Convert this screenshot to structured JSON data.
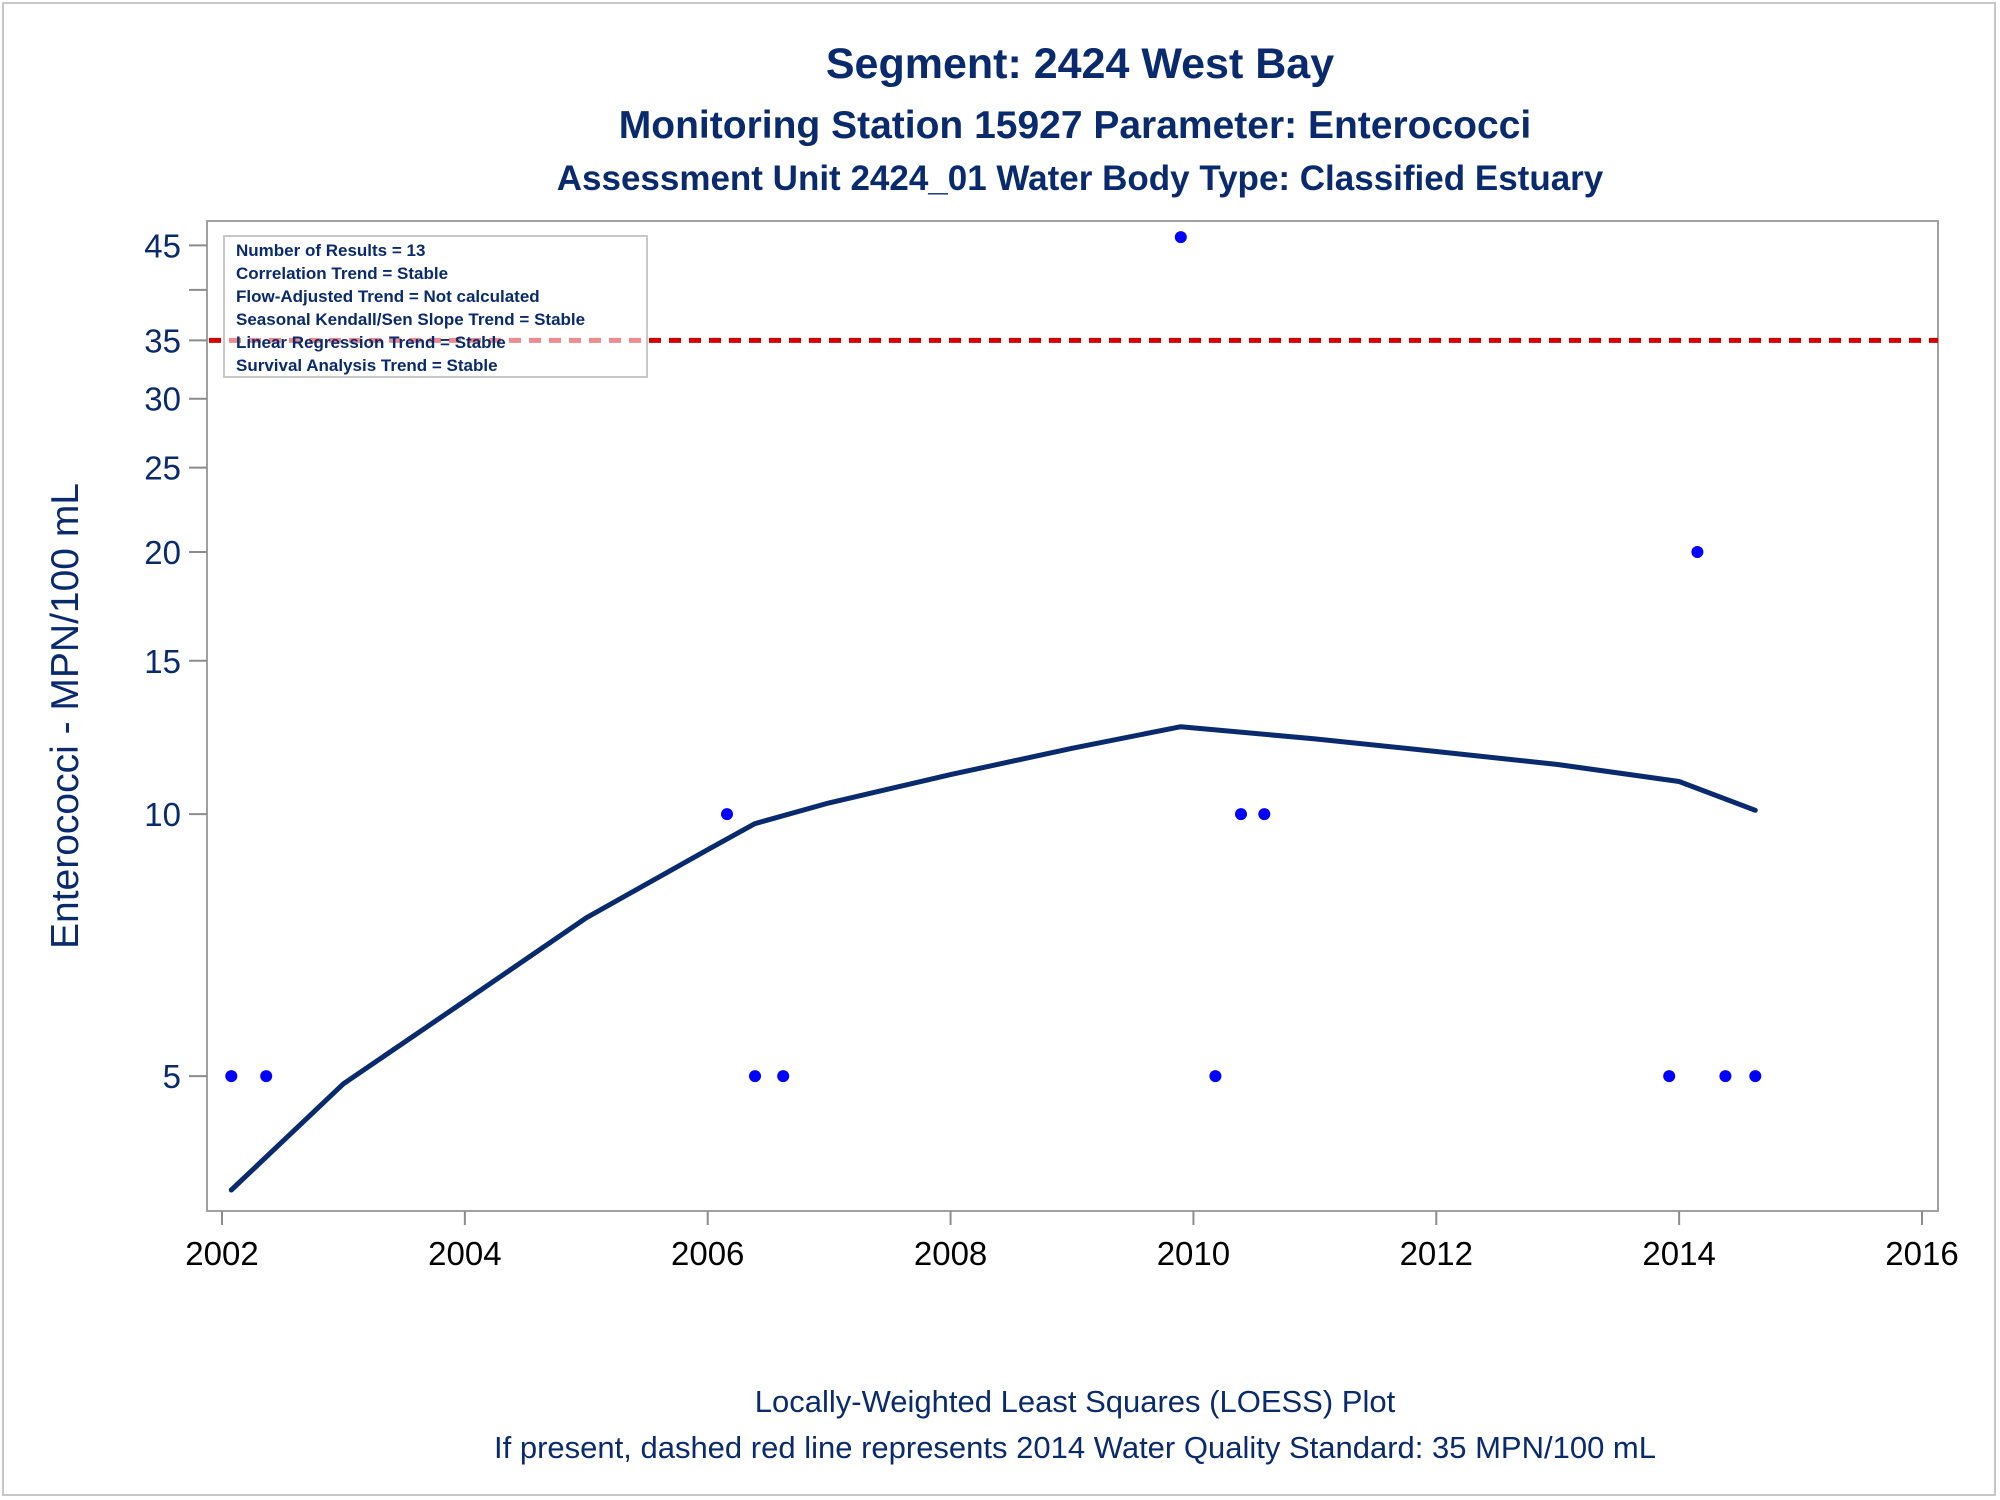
{
  "titles": {
    "line1": "Segment: 2424  West Bay",
    "line2": "Monitoring Station 15927 Parameter: Enterococci",
    "line3": "Assessment Unit 2424_01   Water Body Type: Classified Estuary"
  },
  "footer": {
    "line1": "Locally-Weighted Least Squares (LOESS) Plot",
    "line2": "If present, dashed red line represents 2014 Water Quality Standard: 35 MPN/100 mL"
  },
  "info_box": {
    "lines": [
      "Number of Results = 13",
      "Correlation Trend = Stable",
      "Flow-Adjusted Trend = Not calculated",
      "Seasonal Kendall/Sen Slope Trend = Stable",
      "Linear Regression Trend = Stable",
      "Survival Analysis Trend = Stable"
    ]
  },
  "colors": {
    "points": "#0000ff",
    "loess": "#0a2a6e",
    "standard": "#d40000",
    "text": "#0a2a6e"
  },
  "chart_data": {
    "type": "scatter",
    "title": "Segment: 2424  West Bay",
    "xlabel": "",
    "ylabel": "Enterococci - MPN/100 mL",
    "y_scale": "log",
    "xlim": [
      2002,
      2016
    ],
    "ylim": [
      3.5,
      48
    ],
    "x_ticks": [
      2002,
      2004,
      2006,
      2008,
      2010,
      2012,
      2014,
      2016
    ],
    "y_ticks": [
      5,
      10,
      15,
      20,
      25,
      30,
      35,
      45
    ],
    "y_minor_ticks": [
      40
    ],
    "grid": false,
    "legend_placement": "top-left",
    "series": [
      {
        "type": "scatter",
        "x": [
          "2002-01-29",
          "2002-05-14",
          "2006-02-28",
          "2006-05-23",
          "2006-08-16",
          "2009-11-24",
          "2010-03-08",
          "2010-05-24",
          "2010-08-02",
          "2013-12-02",
          "2014-02-25",
          "2014-05-20",
          "2014-08-18"
        ],
        "y": [
          5,
          5,
          10,
          5,
          5,
          46,
          5,
          10,
          10,
          5,
          20,
          5,
          5
        ]
      },
      {
        "type": "line",
        "x": [
          "2002-01-29",
          "2003-01-01",
          "2004-01-01",
          "2005-01-01",
          "2006-01-01",
          "2006-05-23",
          "2007-01-01",
          "2008-01-01",
          "2009-01-01",
          "2009-11-24",
          "2011-01-01",
          "2012-01-01",
          "2013-01-01",
          "2014-01-01",
          "2014-08-18"
        ],
        "y": [
          3.7,
          4.9,
          6.1,
          7.6,
          9.1,
          9.75,
          10.3,
          11.1,
          11.9,
          12.6,
          12.2,
          11.8,
          11.4,
          10.9,
          10.1
        ]
      },
      {
        "type": "reference_line",
        "y": 35
      }
    ]
  }
}
